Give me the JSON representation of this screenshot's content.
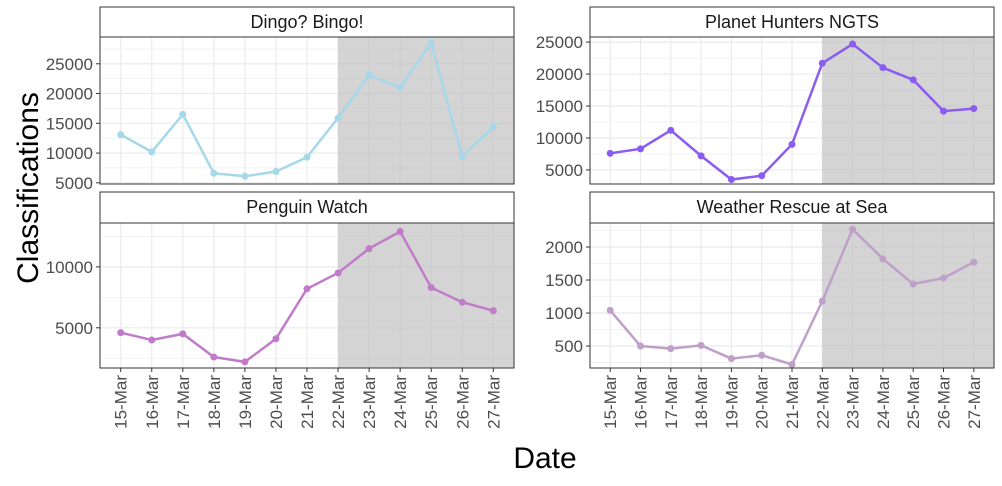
{
  "chart_data": {
    "type": "line",
    "xlabel": "Date",
    "ylabel": "Classifications",
    "x": [
      "15-Mar",
      "16-Mar",
      "17-Mar",
      "18-Mar",
      "19-Mar",
      "20-Mar",
      "21-Mar",
      "22-Mar",
      "23-Mar",
      "24-Mar",
      "25-Mar",
      "26-Mar",
      "27-Mar"
    ],
    "shaded_from": "22-Mar",
    "grid": true,
    "panels": [
      {
        "title": "Dingo? Bingo!",
        "color": "#a6d8ea",
        "ylim": [
          4800,
          29500
        ],
        "yticks": [
          5000,
          10000,
          15000,
          20000,
          25000
        ],
        "values": [
          13100,
          10200,
          16500,
          6600,
          6100,
          6900,
          9300,
          15900,
          23100,
          21000,
          28500,
          9400,
          14400
        ]
      },
      {
        "title": "Planet Hunters NGTS",
        "color": "#8b5cf0",
        "ylim": [
          2800,
          25800
        ],
        "yticks": [
          5000,
          10000,
          15000,
          20000,
          25000
        ],
        "values": [
          7600,
          8300,
          11200,
          7200,
          3500,
          4100,
          9000,
          21700,
          24700,
          21000,
          19100,
          14200,
          14600
        ]
      },
      {
        "title": "Penguin Watch",
        "color": "#c07cc8",
        "ylim": [
          1700,
          13600
        ],
        "yticks": [
          5000,
          10000
        ],
        "values": [
          4600,
          4000,
          4500,
          2600,
          2200,
          4100,
          8200,
          9500,
          11500,
          12900,
          8300,
          7100,
          6400
        ]
      },
      {
        "title": "Weather Rescue at Sea",
        "color": "#bfa0c8",
        "ylim": [
          167,
          2364
        ],
        "yticks": [
          500,
          1000,
          1500,
          2000
        ],
        "values": [
          1040,
          500,
          460,
          510,
          310,
          360,
          220,
          1180,
          2270,
          1820,
          1440,
          1530,
          1770
        ]
      }
    ]
  }
}
